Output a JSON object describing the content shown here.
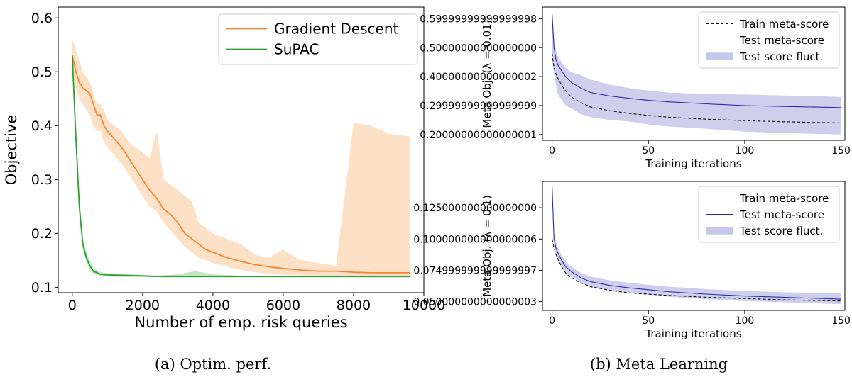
{
  "captions": {
    "a": "(a) Optim. perf.",
    "b": "(b) Meta Learning"
  },
  "chart_data": [
    {
      "type": "line",
      "xlabel": "Number of emp. risk queries",
      "ylabel": "Objective",
      "xlim": [
        -400,
        10000
      ],
      "ylim": [
        0.09,
        0.62
      ],
      "xticks": [
        0,
        2000,
        4000,
        6000,
        8000,
        10000
      ],
      "yticks": [
        0.1,
        0.2,
        0.3,
        0.4,
        0.5,
        0.6
      ],
      "legend_position": "top-right",
      "series": [
        {
          "name": "Gradient Descent",
          "color": "#f5862e",
          "band_color": "#fdd9b8",
          "x": [
            0,
            100,
            200,
            300,
            400,
            500,
            600,
            700,
            800,
            900,
            1000,
            1200,
            1400,
            1600,
            1800,
            2000,
            2200,
            2400,
            2600,
            2800,
            3000,
            3200,
            3400,
            3600,
            3800,
            4000,
            4400,
            4800,
            5200,
            5600,
            6000,
            6500,
            7000,
            7500,
            8000,
            8500,
            9000,
            9600
          ],
          "y": [
            0.53,
            0.5,
            0.48,
            0.47,
            0.465,
            0.46,
            0.44,
            0.42,
            0.42,
            0.4,
            0.39,
            0.375,
            0.36,
            0.34,
            0.32,
            0.3,
            0.28,
            0.265,
            0.245,
            0.235,
            0.22,
            0.2,
            0.19,
            0.18,
            0.17,
            0.165,
            0.155,
            0.148,
            0.142,
            0.138,
            0.135,
            0.132,
            0.13,
            0.13,
            0.128,
            0.127,
            0.127,
            0.127
          ],
          "upper": [
            0.56,
            0.54,
            0.52,
            0.5,
            0.49,
            0.48,
            0.46,
            0.44,
            0.44,
            0.43,
            0.41,
            0.4,
            0.39,
            0.37,
            0.36,
            0.35,
            0.34,
            0.39,
            0.3,
            0.29,
            0.28,
            0.27,
            0.26,
            0.22,
            0.21,
            0.2,
            0.19,
            0.18,
            0.16,
            0.155,
            0.17,
            0.15,
            0.145,
            0.14,
            0.405,
            0.4,
            0.385,
            0.38
          ],
          "lower": [
            0.5,
            0.47,
            0.45,
            0.44,
            0.43,
            0.42,
            0.4,
            0.39,
            0.39,
            0.37,
            0.36,
            0.345,
            0.33,
            0.31,
            0.29,
            0.27,
            0.25,
            0.24,
            0.22,
            0.205,
            0.19,
            0.175,
            0.165,
            0.155,
            0.15,
            0.145,
            0.138,
            0.132,
            0.128,
            0.125,
            0.123,
            0.122,
            0.121,
            0.12,
            0.12,
            0.12,
            0.119,
            0.119
          ]
        },
        {
          "name": "SuPAC",
          "color": "#2ca02c",
          "band_color": "#b3dfb3",
          "x": [
            0,
            100,
            200,
            300,
            400,
            500,
            600,
            800,
            1000,
            1500,
            2000,
            2500,
            3000,
            3500,
            4000,
            5000,
            6000,
            7000,
            8000,
            9000,
            9600
          ],
          "y": [
            0.53,
            0.38,
            0.25,
            0.18,
            0.155,
            0.14,
            0.13,
            0.124,
            0.123,
            0.122,
            0.121,
            0.12,
            0.12,
            0.12,
            0.12,
            0.12,
            0.12,
            0.12,
            0.12,
            0.12,
            0.12
          ],
          "upper": [
            0.535,
            0.4,
            0.27,
            0.19,
            0.165,
            0.148,
            0.136,
            0.128,
            0.126,
            0.125,
            0.123,
            0.122,
            0.124,
            0.13,
            0.124,
            0.121,
            0.121,
            0.121,
            0.121,
            0.121,
            0.121
          ],
          "lower": [
            0.525,
            0.36,
            0.23,
            0.17,
            0.148,
            0.132,
            0.125,
            0.121,
            0.12,
            0.119,
            0.119,
            0.119,
            0.119,
            0.119,
            0.119,
            0.119,
            0.119,
            0.119,
            0.119,
            0.119,
            0.119
          ]
        }
      ]
    },
    {
      "type": "line",
      "xlabel": "Training iterations",
      "ylabel": "Meta Obj. (λ = 0.01)",
      "xlim": [
        -5,
        152
      ],
      "ylim": [
        0.18,
        0.64
      ],
      "xticks": [
        0,
        50,
        100,
        150
      ],
      "yticks": [
        0.2,
        0.3,
        0.4,
        0.5,
        0.6
      ],
      "legend_position": "top-right",
      "series": [
        {
          "name": "Train meta-score",
          "color": "#000000",
          "dashed": true,
          "x": [
            0,
            1,
            2,
            3,
            5,
            7,
            10,
            15,
            20,
            30,
            40,
            50,
            60,
            80,
            100,
            120,
            150
          ],
          "y": [
            0.48,
            0.43,
            0.41,
            0.395,
            0.37,
            0.35,
            0.33,
            0.31,
            0.295,
            0.282,
            0.273,
            0.266,
            0.26,
            0.253,
            0.248,
            0.244,
            0.24
          ]
        },
        {
          "name": "Test meta-score",
          "color": "#2b2b9e",
          "x": [
            0,
            1,
            2,
            3,
            5,
            7,
            10,
            15,
            20,
            30,
            40,
            50,
            60,
            80,
            100,
            120,
            150
          ],
          "y": [
            0.615,
            0.5,
            0.46,
            0.44,
            0.42,
            0.4,
            0.38,
            0.36,
            0.345,
            0.333,
            0.325,
            0.318,
            0.313,
            0.306,
            0.3,
            0.297,
            0.293
          ]
        },
        {
          "name": "Test score fluct.",
          "color": "#c7c7ea",
          "band": true,
          "x": [
            0,
            1,
            2,
            3,
            5,
            7,
            10,
            15,
            20,
            30,
            40,
            50,
            60,
            80,
            100,
            120,
            150
          ],
          "upper": [
            0.64,
            0.53,
            0.49,
            0.47,
            0.45,
            0.43,
            0.415,
            0.405,
            0.39,
            0.372,
            0.36,
            0.352,
            0.345,
            0.34,
            0.338,
            0.335,
            0.33
          ],
          "lower": [
            0.46,
            0.41,
            0.37,
            0.34,
            0.32,
            0.3,
            0.29,
            0.27,
            0.26,
            0.25,
            0.245,
            0.235,
            0.228,
            0.22,
            0.21,
            0.205,
            0.2
          ]
        }
      ]
    },
    {
      "type": "line",
      "xlabel": "Training iterations",
      "ylabel": "Meta Obj. (λ = 0.1)",
      "xlim": [
        -5,
        152
      ],
      "ylim": [
        0.043,
        0.146
      ],
      "xticks": [
        0,
        50,
        100,
        150
      ],
      "yticks": [
        0.05,
        0.075,
        0.1,
        0.125
      ],
      "legend_position": "top-right",
      "series": [
        {
          "name": "Train meta-score",
          "color": "#000000",
          "dashed": true,
          "x": [
            0,
            1,
            2,
            3,
            5,
            7,
            10,
            15,
            20,
            30,
            40,
            50,
            60,
            80,
            100,
            120,
            150
          ],
          "y": [
            0.1,
            0.093,
            0.088,
            0.084,
            0.078,
            0.073,
            0.069,
            0.065,
            0.062,
            0.059,
            0.057,
            0.056,
            0.055,
            0.0535,
            0.0525,
            0.0515,
            0.0505
          ]
        },
        {
          "name": "Test meta-score",
          "color": "#2b2b9e",
          "x": [
            0,
            1,
            2,
            3,
            5,
            7,
            10,
            15,
            20,
            30,
            40,
            50,
            60,
            80,
            100,
            120,
            150
          ],
          "y": [
            0.142,
            0.1,
            0.093,
            0.089,
            0.083,
            0.078,
            0.074,
            0.069,
            0.066,
            0.063,
            0.061,
            0.0595,
            0.058,
            0.056,
            0.0545,
            0.0535,
            0.052
          ]
        },
        {
          "name": "Test score fluct.",
          "color": "#c7c7ea",
          "band": true,
          "x": [
            0,
            1,
            2,
            3,
            5,
            7,
            10,
            15,
            20,
            30,
            40,
            50,
            60,
            80,
            100,
            120,
            150
          ],
          "upper": [
            0.145,
            0.104,
            0.097,
            0.093,
            0.087,
            0.082,
            0.078,
            0.073,
            0.07,
            0.067,
            0.065,
            0.0635,
            0.062,
            0.06,
            0.0585,
            0.0575,
            0.0565
          ],
          "lower": [
            0.139,
            0.096,
            0.089,
            0.085,
            0.079,
            0.074,
            0.07,
            0.065,
            0.062,
            0.059,
            0.057,
            0.0555,
            0.054,
            0.052,
            0.0505,
            0.0495,
            0.048
          ]
        }
      ]
    }
  ]
}
